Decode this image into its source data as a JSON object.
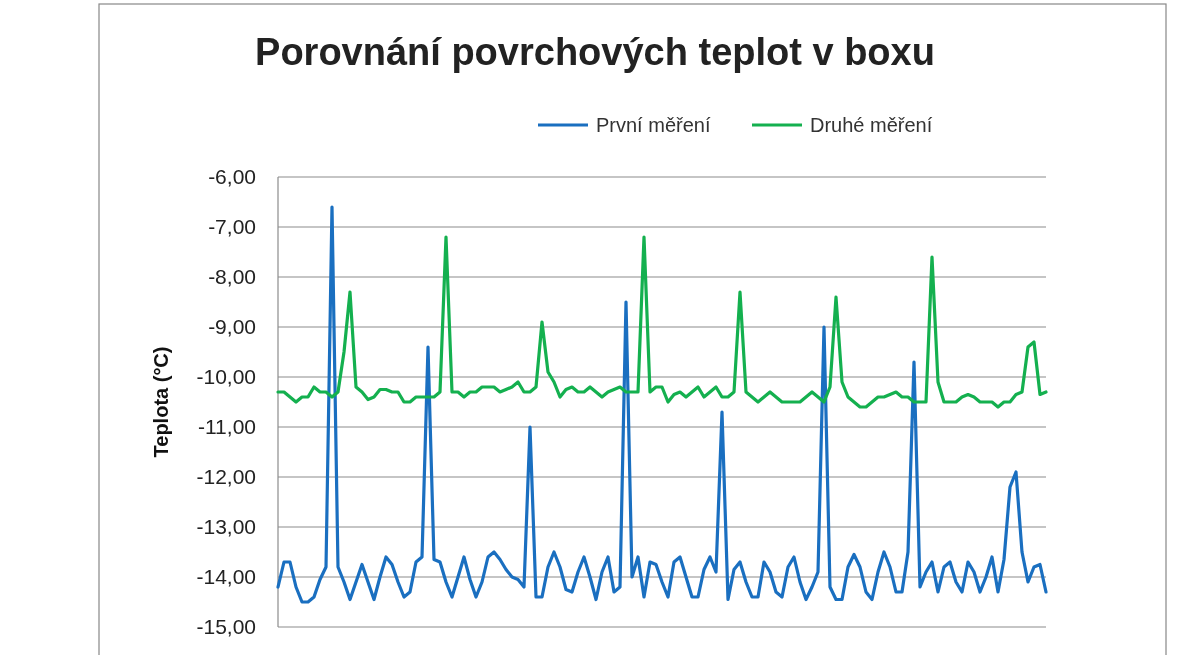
{
  "chart_data": {
    "type": "line",
    "title": "Porovnání povrchových teplot v boxu",
    "ylabel": "Teplota (°C)",
    "categories": [
      null,
      null,
      null,
      null,
      null,
      null,
      null,
      null,
      null,
      null,
      null,
      null,
      null,
      null,
      null,
      null,
      null,
      null,
      null,
      null,
      null,
      null,
      null,
      null,
      null,
      null,
      null,
      null,
      null,
      null,
      null,
      null,
      null,
      null,
      null,
      null,
      null,
      null,
      null,
      null,
      null,
      null,
      null,
      null,
      null,
      null,
      null,
      null,
      null,
      null,
      null,
      null,
      null,
      null,
      null,
      null,
      null,
      null,
      null,
      null,
      null,
      null,
      null,
      null,
      null,
      null,
      null,
      null,
      null,
      null,
      null,
      null,
      null,
      null,
      null,
      null,
      null,
      null,
      null,
      null,
      null,
      null,
      null,
      null,
      null,
      null,
      null,
      null,
      null,
      null,
      null,
      null,
      null,
      null,
      null,
      null,
      null,
      null,
      null,
      null,
      null,
      null,
      null,
      null,
      null,
      null,
      null,
      null,
      null,
      null,
      null,
      null,
      null,
      null,
      null,
      null,
      null,
      null,
      null,
      null,
      null,
      null,
      null,
      null,
      null,
      null,
      null,
      null,
      null
    ],
    "series": [
      {
        "name": "První měření",
        "color": "#1a6fc0",
        "values": [
          -14.2,
          -13.7,
          -13.7,
          -14.2,
          -14.5,
          -14.5,
          -14.4,
          -14.05,
          -13.8,
          -6.6,
          -13.8,
          -14.1,
          -14.45,
          -14.1,
          -13.75,
          -14.1,
          -14.45,
          -14.0,
          -13.6,
          -13.75,
          -14.1,
          -14.4,
          -14.3,
          -13.7,
          -13.6,
          -9.4,
          -13.65,
          -13.7,
          -14.1,
          -14.4,
          -14.0,
          -13.6,
          -14.05,
          -14.4,
          -14.1,
          -13.6,
          -13.5,
          -13.65,
          -13.85,
          -14.0,
          -14.05,
          -14.2,
          -11.0,
          -14.4,
          -14.4,
          -13.8,
          -13.5,
          -13.8,
          -14.25,
          -14.3,
          -13.9,
          -13.6,
          -14.0,
          -14.45,
          -13.9,
          -13.6,
          -14.3,
          -14.2,
          -8.5,
          -14.0,
          -13.6,
          -14.4,
          -13.7,
          -13.75,
          -14.1,
          -14.4,
          -13.7,
          -13.6,
          -14.0,
          -14.4,
          -14.4,
          -13.85,
          -13.6,
          -13.9,
          -10.7,
          -14.45,
          -13.85,
          -13.7,
          -14.1,
          -14.4,
          -14.4,
          -13.7,
          -13.9,
          -14.3,
          -14.4,
          -13.8,
          -13.6,
          -14.1,
          -14.45,
          -14.2,
          -13.9,
          -9.0,
          -14.2,
          -14.45,
          -14.45,
          -13.8,
          -13.55,
          -13.8,
          -14.3,
          -14.45,
          -13.9,
          -13.5,
          -13.8,
          -14.3,
          -14.3,
          -13.5,
          -9.7,
          -14.2,
          -13.9,
          -13.7,
          -14.3,
          -13.8,
          -13.7,
          -14.1,
          -14.3,
          -13.7,
          -13.9,
          -14.3,
          -14.0,
          -13.6,
          -14.3,
          -13.65,
          -12.2,
          -11.9,
          -13.5,
          -14.1,
          -13.8,
          -13.75,
          -14.3
        ]
      },
      {
        "name": "Druhé měření",
        "color": "#14b04f",
        "values": [
          -10.3,
          -10.3,
          -10.4,
          -10.5,
          -10.4,
          -10.4,
          -10.2,
          -10.3,
          -10.3,
          -10.4,
          -10.3,
          -9.5,
          -8.3,
          -10.2,
          -10.3,
          -10.45,
          -10.4,
          -10.25,
          -10.25,
          -10.3,
          -10.3,
          -10.5,
          -10.5,
          -10.4,
          -10.4,
          -10.4,
          -10.4,
          -10.3,
          -7.2,
          -10.3,
          -10.3,
          -10.4,
          -10.3,
          -10.3,
          -10.2,
          -10.2,
          -10.2,
          -10.3,
          -10.25,
          -10.2,
          -10.1,
          -10.3,
          -10.3,
          -10.2,
          -8.9,
          -9.9,
          -10.1,
          -10.4,
          -10.25,
          -10.2,
          -10.3,
          -10.3,
          -10.2,
          -10.3,
          -10.4,
          -10.3,
          -10.25,
          -10.2,
          -10.3,
          -10.3,
          -10.3,
          -7.2,
          -10.3,
          -10.2,
          -10.2,
          -10.5,
          -10.35,
          -10.3,
          -10.4,
          -10.3,
          -10.2,
          -10.4,
          -10.3,
          -10.2,
          -10.4,
          -10.4,
          -10.3,
          -8.3,
          -10.3,
          -10.4,
          -10.5,
          -10.4,
          -10.3,
          -10.4,
          -10.5,
          -10.5,
          -10.5,
          -10.5,
          -10.4,
          -10.3,
          -10.4,
          -10.5,
          -10.2,
          -8.4,
          -10.1,
          -10.4,
          -10.5,
          -10.6,
          -10.6,
          -10.5,
          -10.4,
          -10.4,
          -10.35,
          -10.3,
          -10.4,
          -10.4,
          -10.5,
          -10.5,
          -10.5,
          -7.6,
          -10.1,
          -10.5,
          -10.5,
          -10.5,
          -10.4,
          -10.35,
          -10.4,
          -10.5,
          -10.5,
          -10.5,
          -10.6,
          -10.5,
          -10.5,
          -10.35,
          -10.3,
          -9.4,
          -9.3,
          -10.35,
          -10.3
        ]
      }
    ],
    "ylim": [
      -15,
      -6
    ],
    "yticks": [
      {
        "value": -15,
        "label": "-15,00"
      },
      {
        "value": -14,
        "label": "-14,00"
      },
      {
        "value": -13,
        "label": "-13,00"
      },
      {
        "value": -12,
        "label": "-12,00"
      },
      {
        "value": -11,
        "label": "-11,00"
      },
      {
        "value": -10,
        "label": "-10,00"
      },
      {
        "value": -9,
        "label": "-9,00"
      },
      {
        "value": -8,
        "label": "-8,00"
      },
      {
        "value": -7,
        "label": "-7,00"
      },
      {
        "value": -6,
        "label": "-6,00"
      }
    ],
    "grid": "y",
    "legend": "top",
    "tick_labels": "y"
  }
}
